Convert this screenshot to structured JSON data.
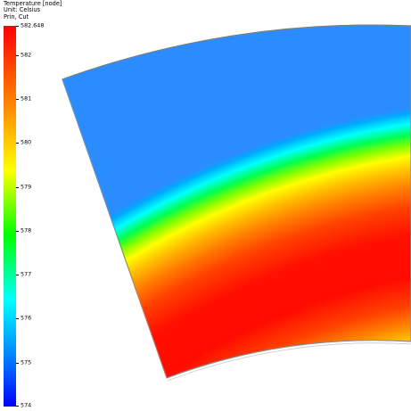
{
  "legend": {
    "title": "Temperature [node]",
    "unit": "Unit: Celsius",
    "view": "Prin, Cut",
    "max_label": "582.648",
    "ticks": [
      "582",
      "581",
      "580",
      "579",
      "578",
      "577",
      "576",
      "575",
      "574"
    ]
  },
  "colors": {
    "colormap": [
      "#0000ff",
      "#0080ff",
      "#00ffff",
      "#00ff00",
      "#ffff00",
      "#ff7a00",
      "#ff0000"
    ],
    "background": "#ffffff",
    "outline": "#8a8a8a"
  }
}
